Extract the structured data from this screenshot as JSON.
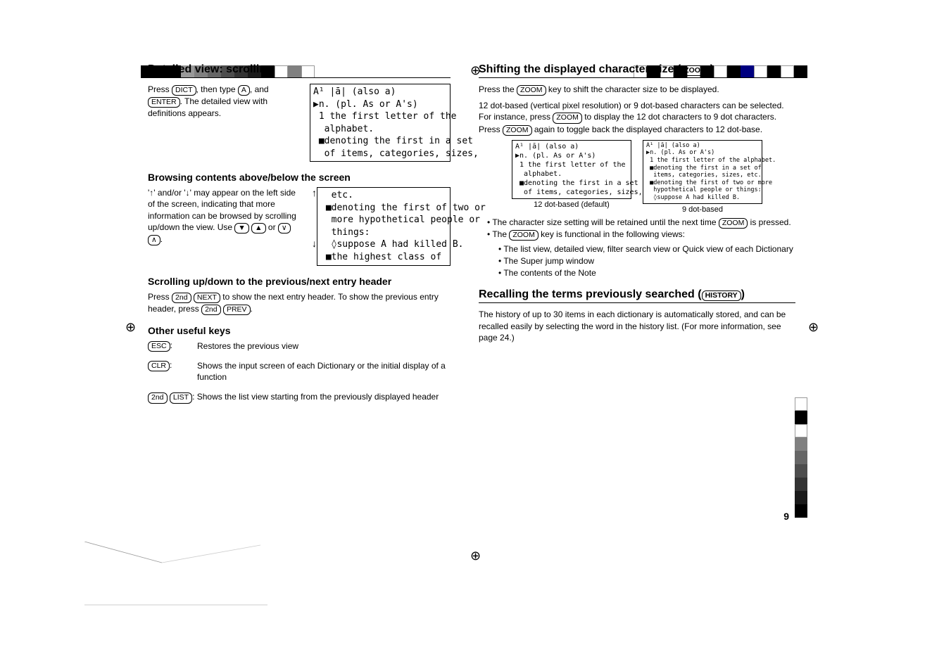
{
  "page_number": "9",
  "left": {
    "sec1_title": "Detailed view: scrolling",
    "sec1_text_a": "Press ",
    "sec1_k1": "DICT",
    "sec1_text_b": ", then type ",
    "sec1_k2": "A",
    "sec1_text_c": ", and ",
    "sec1_k3": "ENTER",
    "sec1_text_d": ". The detailed view with definitions appears.",
    "lcd1": "A¹ |ā| (also a)\n▶n. (pl. As or A's)\n 1 the first letter of the\n  alphabet.\n ■denoting the first in a set\n  of items, categories, sizes,",
    "sub2_title": "Browsing contents above/below the screen",
    "sub2_text_a": "'",
    "sub2_arrow_up": "↑",
    "sub2_text_b": "' and/or '",
    "sub2_arrow_down": "↓",
    "sub2_text_c": "' may appear on the left side of the screen, indicating that more information can be browsed by scrolling up/down the view. Use ",
    "sub2_k1": "▼",
    "sub2_k2": "▲",
    "sub2_text_d": " or ",
    "sub2_k3": "∨",
    "sub2_k4": "∧",
    "sub2_text_e": ".",
    "lcd2": "  etc.\n ■denoting the first of two or\n  more hypothetical people or\n  things:\n  ◊suppose A had killed B.\n ■the highest class of",
    "lcd2_up": "↑",
    "lcd2_down": "↓",
    "sub3_title": "Scrolling up/down to the previous/next entry header",
    "sub3_text_a": "Press ",
    "sub3_k1": "2nd",
    "sub3_k2": "NEXT",
    "sub3_text_b": " to show the next entry header. To show the previous entry header, press ",
    "sub3_k3": "2nd",
    "sub3_k4": "PREV",
    "sub3_text_c": ".",
    "sub4_title": "Other useful keys",
    "row1_k": "ESC",
    "row1_d": "Restores the previous view",
    "row2_k": "CLR",
    "row2_d": "Shows the input screen of each Dictionary or the initial display of a function",
    "row3_k1": "2nd",
    "row3_k2": "LIST",
    "row3_d": ": Shows the list view starting from the previously displayed header"
  },
  "right": {
    "sec1_title_a": "Shifting the displayed character size (",
    "sec1_title_k": "ZOOM",
    "sec1_title_b": ")",
    "p1_a": "Press the ",
    "p1_k": "ZOOM",
    "p1_b": " key to shift the character size to be displayed.",
    "p2_a": "12 dot-based (vertical pixel resolution) or 9 dot-based characters can be selected. For instance, press ",
    "p2_k1": "ZOOM",
    "p2_b": " to display the 12 dot characters to 9 dot characters. Press ",
    "p2_k2": "ZOOM",
    "p2_c": " again to toggle back the displayed characters to 12 dot-base.",
    "lcd12": "A¹ |ā| (also a)\n▶n. (pl. As or A's)\n 1 the first letter of the\n  alphabet.\n ■denoting the first in a set\n  of items, categories, sizes,",
    "lcd12_cap": "12 dot-based (default)",
    "lcd9": "A¹ |ā| (also a)\n▶n. (pl. As or A's)\n 1 the first letter of the alphabet.\n ■denoting the first in a set of\n  items, categories, sizes, etc.\n ■denoting the first of two or more\n  hypothetical people or things:\n  ◊suppose A had killed B.",
    "lcd9_cap": "9 dot-based",
    "b1_a": "The character size setting will be retained until the next time ",
    "b1_k": "ZOOM",
    "b1_b": " is pressed.",
    "b2_a": "The ",
    "b2_k": "ZOOM",
    "b2_b": " key is functional in the following views:",
    "sb1": "The list view, detailed view, filter search view or Quick view of each Dictionary",
    "sb2": "The Super jump window",
    "sb3": "The contents of the Note",
    "sec2_title_a": "Recalling the terms previously searched (",
    "sec2_title_k": "HISTORY",
    "sec2_title_b": ")",
    "sec2_p": "The history of up to 30 items in each dictionary is automatically stored, and can be recalled easily by selecting the word in the history list. (For more information, see page 24.)"
  },
  "colors": {
    "top_left": [
      "#000000",
      "#000000",
      "#000000",
      "#999999",
      "#808080",
      "#666666",
      "#4d4d4d",
      "#333333",
      "#1a1a1a",
      "#000000",
      "#ffffff",
      "#808080",
      "#ffffff"
    ],
    "top_right": [
      "#ffffff",
      "#000000",
      "#ffffff",
      "#000000",
      "#ffffff",
      "#000000",
      "#ffffff",
      "#000000",
      "#000080",
      "#ffffff",
      "#000000",
      "#ffffff",
      "#000000"
    ],
    "bot_right": [
      "#ffffff",
      "#000000",
      "#ffffff",
      "#808080",
      "#666666",
      "#4d4d4d",
      "#333333",
      "#1a1a1a",
      "#000000"
    ]
  }
}
